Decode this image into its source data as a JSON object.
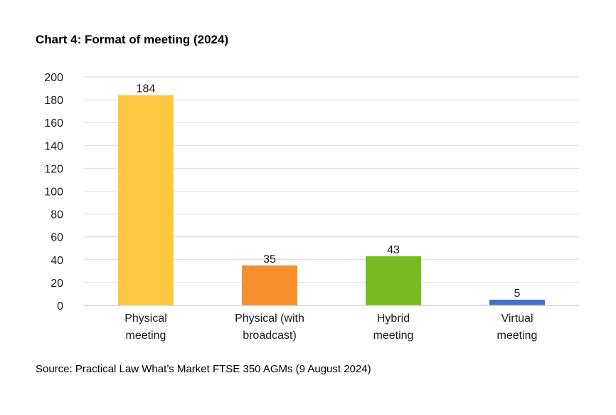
{
  "title": "Chart 4: Format of meeting (2024)",
  "source": "Source: Practical Law What’s Market FTSE 350 AGMs (9 August 2024)",
  "chart_data": {
    "type": "bar",
    "title": "Chart 4: Format of meeting (2024)",
    "xlabel": "",
    "ylabel": "",
    "categories": [
      [
        "Physical",
        "meeting"
      ],
      [
        "Physical (with",
        "broadcast)"
      ],
      [
        "Hybrid",
        "meeting"
      ],
      [
        "Virtual",
        "meeting"
      ]
    ],
    "values": [
      184,
      35,
      43,
      5
    ],
    "colors": [
      "#FFC842",
      "#F78F2D",
      "#76BC21",
      "#4472C4"
    ],
    "ylim": [
      0,
      200
    ],
    "yticks": [
      0,
      20,
      40,
      60,
      80,
      100,
      120,
      140,
      160,
      180,
      200
    ],
    "grid": true,
    "legend": "none"
  }
}
